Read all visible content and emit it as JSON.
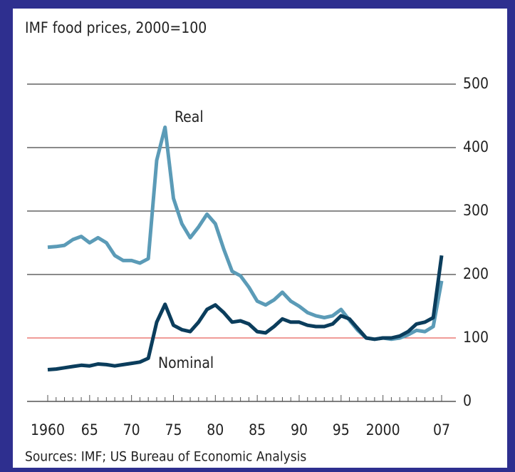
{
  "chart_data": {
    "type": "line",
    "title": "IMF food prices, 2000=100",
    "source": "Sources: IMF; US Bureau of Economic Analysis",
    "x": [
      1960,
      1961,
      1962,
      1963,
      1964,
      1965,
      1966,
      1967,
      1968,
      1969,
      1970,
      1971,
      1972,
      1973,
      1974,
      1975,
      1976,
      1977,
      1978,
      1979,
      1980,
      1981,
      1982,
      1983,
      1984,
      1985,
      1986,
      1987,
      1988,
      1989,
      1990,
      1991,
      1992,
      1993,
      1994,
      1995,
      1996,
      1997,
      1998,
      1999,
      2000,
      2001,
      2002,
      2003,
      2004,
      2005,
      2006,
      2007
    ],
    "series": [
      {
        "name": "Real",
        "color": "#5b9bb7",
        "values": [
          243,
          244,
          246,
          255,
          260,
          250,
          258,
          250,
          230,
          222,
          222,
          218,
          225,
          380,
          432,
          320,
          280,
          258,
          275,
          295,
          280,
          240,
          205,
          198,
          180,
          158,
          152,
          160,
          172,
          158,
          150,
          140,
          135,
          132,
          135,
          145,
          128,
          112,
          100,
          98,
          100,
          98,
          100,
          105,
          112,
          110,
          118,
          190
        ]
      },
      {
        "name": "Nominal",
        "color": "#0b3d5c",
        "values": [
          50,
          51,
          53,
          55,
          57,
          56,
          59,
          58,
          56,
          58,
          60,
          62,
          68,
          125,
          153,
          120,
          113,
          110,
          125,
          145,
          152,
          140,
          125,
          127,
          122,
          110,
          108,
          118,
          130,
          125,
          125,
          120,
          118,
          118,
          122,
          135,
          130,
          115,
          100,
          98,
          100,
          100,
          103,
          110,
          122,
          125,
          132,
          230
        ]
      }
    ],
    "xlim": [
      1960,
      2007
    ],
    "xticks": [
      1960,
      {
        "value": 1965,
        "label": "65"
      },
      {
        "value": 1970,
        "label": "70"
      },
      {
        "value": 1975,
        "label": "75"
      },
      {
        "value": 1980,
        "label": "80"
      },
      {
        "value": 1985,
        "label": "85"
      },
      {
        "value": 1990,
        "label": "90"
      },
      {
        "value": 1995,
        "label": "95"
      },
      2000,
      {
        "value": 2007,
        "label": "07"
      }
    ],
    "ylim": [
      0,
      500
    ],
    "yticks": [
      0,
      100,
      200,
      300,
      400,
      500
    ],
    "grid": true,
    "reference_line": {
      "value": 100,
      "color": "#e8605a"
    }
  }
}
